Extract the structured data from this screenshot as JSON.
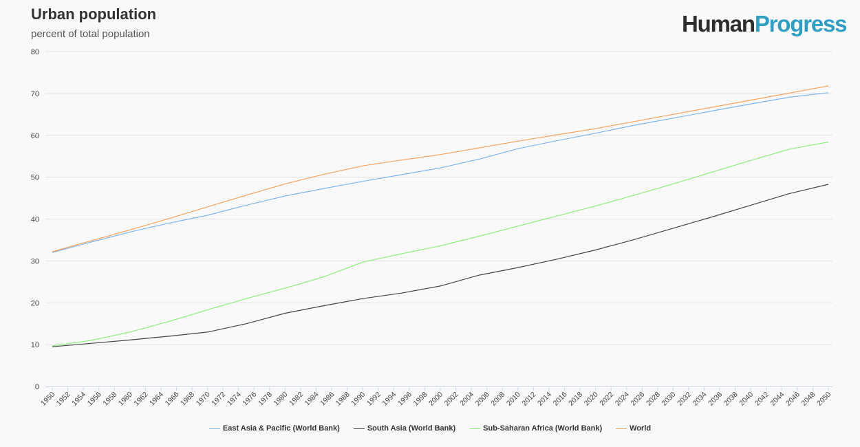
{
  "header": {
    "title": "Urban population",
    "subtitle": "percent of total population",
    "logo_part1": "Human",
    "logo_part2": "Progress"
  },
  "chart_data": {
    "type": "line",
    "title": "Urban population",
    "subtitle": "percent of total population",
    "xlabel": "",
    "ylabel": "",
    "ylim": [
      0,
      80
    ],
    "yticks": [
      0,
      10,
      20,
      30,
      40,
      50,
      60,
      70,
      80
    ],
    "xlim": [
      1950,
      2050
    ],
    "xtick_step": 2,
    "grid": "horizontal",
    "legend_position": "bottom",
    "x": [
      1950,
      1955,
      1960,
      1965,
      1970,
      1975,
      1980,
      1985,
      1990,
      1995,
      2000,
      2005,
      2010,
      2015,
      2020,
      2025,
      2030,
      2035,
      2040,
      2045,
      2050
    ],
    "series": [
      {
        "name": "East Asia & Pacific (World Bank)",
        "color": "#7cb5ec",
        "values": [
          32.0,
          34.5,
          36.9,
          39.0,
          40.9,
          43.3,
          45.5,
          47.3,
          49.0,
          50.6,
          52.2,
          54.3,
          56.8,
          58.7,
          60.5,
          62.4,
          64.1,
          65.8,
          67.5,
          69.1,
          70.2
        ]
      },
      {
        "name": "South Asia (World Bank)",
        "color": "#434348",
        "values": [
          9.5,
          10.3,
          11.1,
          12.0,
          13.0,
          15.0,
          17.5,
          19.3,
          21.0,
          22.3,
          24.0,
          26.6,
          28.4,
          30.4,
          32.6,
          35.1,
          37.8,
          40.5,
          43.3,
          46.1,
          48.3
        ]
      },
      {
        "name": "Sub-Saharan Africa (World Bank)",
        "color": "#90ed7d",
        "values": [
          9.7,
          11.0,
          13.0,
          15.5,
          18.3,
          21.0,
          23.5,
          26.2,
          29.7,
          31.7,
          33.6,
          35.9,
          38.3,
          40.7,
          43.1,
          45.7,
          48.4,
          51.2,
          54.0,
          56.7,
          58.4
        ]
      },
      {
        "name": "World",
        "color": "#f7a35c",
        "values": [
          32.2,
          34.8,
          37.4,
          40.1,
          42.9,
          45.7,
          48.4,
          50.7,
          52.7,
          54.1,
          55.4,
          57.0,
          58.6,
          60.1,
          61.6,
          63.3,
          65.0,
          66.7,
          68.4,
          70.1,
          71.8
        ]
      }
    ]
  }
}
